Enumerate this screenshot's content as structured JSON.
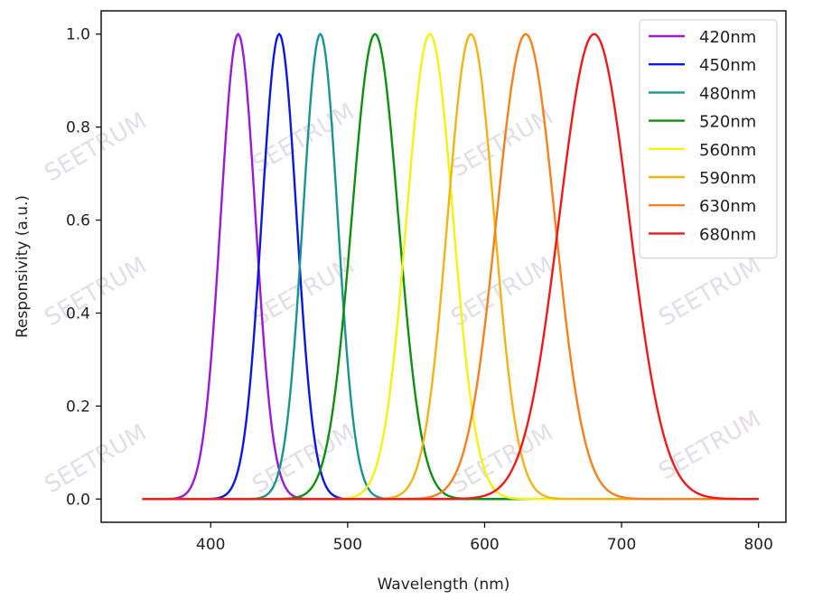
{
  "chart_data": {
    "type": "line",
    "xlabel": "Wavelength (nm)",
    "ylabel": "Responsivity (a.u.)",
    "xlim": [
      320,
      820
    ],
    "ylim": [
      -0.05,
      1.05
    ],
    "xticks": [
      400,
      500,
      600,
      700,
      800
    ],
    "yticks": [
      0.0,
      0.2,
      0.4,
      0.6,
      0.8,
      1.0
    ],
    "x_range": [
      350,
      800
    ],
    "curve_shape": "gaussian",
    "grid": false,
    "legend_position": "top-right",
    "series": [
      {
        "name": "420nm",
        "peak": 420,
        "fwhm": 30,
        "color": "#9b19d8"
      },
      {
        "name": "450nm",
        "peak": 450,
        "fwhm": 30,
        "color": "#0b18e0"
      },
      {
        "name": "480nm",
        "peak": 480,
        "fwhm": 30,
        "color": "#1a9490"
      },
      {
        "name": "520nm",
        "peak": 520,
        "fwhm": 40,
        "color": "#0e8f12"
      },
      {
        "name": "560nm",
        "peak": 560,
        "fwhm": 40,
        "color": "#f4f20e"
      },
      {
        "name": "590nm",
        "peak": 590,
        "fwhm": 40,
        "color": "#f2b414"
      },
      {
        "name": "630nm",
        "peak": 630,
        "fwhm": 50,
        "color": "#f5801e"
      },
      {
        "name": "680nm",
        "peak": 680,
        "fwhm": 60,
        "color": "#ee1a1a"
      }
    ]
  },
  "watermark": {
    "text": "SEETRUM"
  }
}
